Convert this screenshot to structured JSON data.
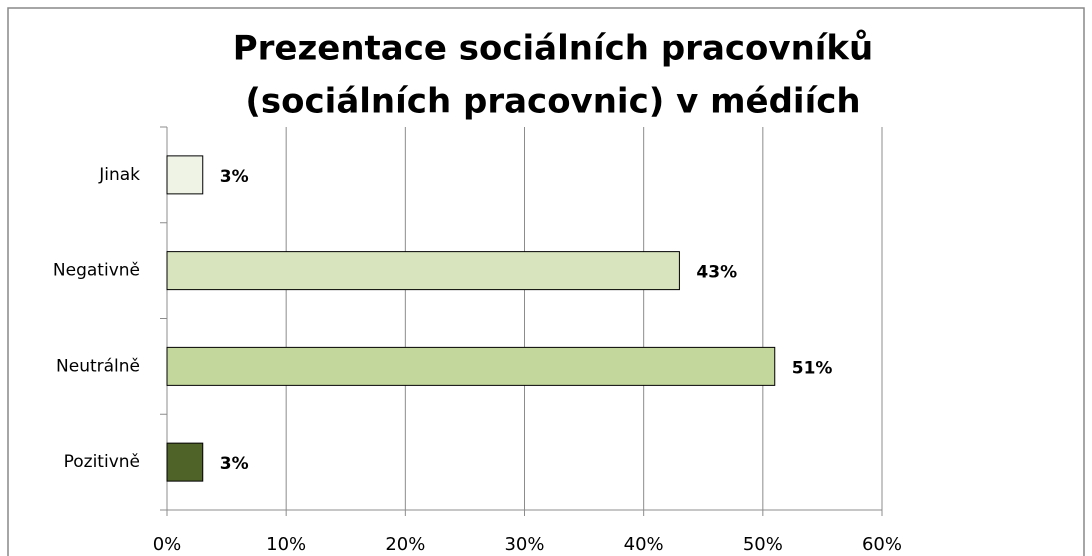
{
  "chart_data": {
    "type": "bar",
    "orientation": "horizontal",
    "title": [
      "Prezentace sociálních pracovníků",
      "(sociálních pracovnic) v médiích"
    ],
    "categories": [
      "Jinak",
      "Negativně",
      "Neutrálně",
      "Pozitivně"
    ],
    "values": [
      3,
      43,
      51,
      3
    ],
    "value_labels": [
      "3%",
      "43%",
      "51%",
      "3%"
    ],
    "colors": [
      "#eef3e6",
      "#d7e4bd",
      "#c3d69b",
      "#4f6228"
    ],
    "xlim": [
      0,
      60
    ],
    "xticks": [
      {
        "value": 0,
        "label": "0%"
      },
      {
        "value": 10,
        "label": "10%"
      },
      {
        "value": 20,
        "label": "20%"
      },
      {
        "value": 30,
        "label": "30%"
      },
      {
        "value": 40,
        "label": "40%"
      },
      {
        "value": 50,
        "label": "50%"
      },
      {
        "value": 60,
        "label": "60%"
      }
    ],
    "grid": true
  }
}
